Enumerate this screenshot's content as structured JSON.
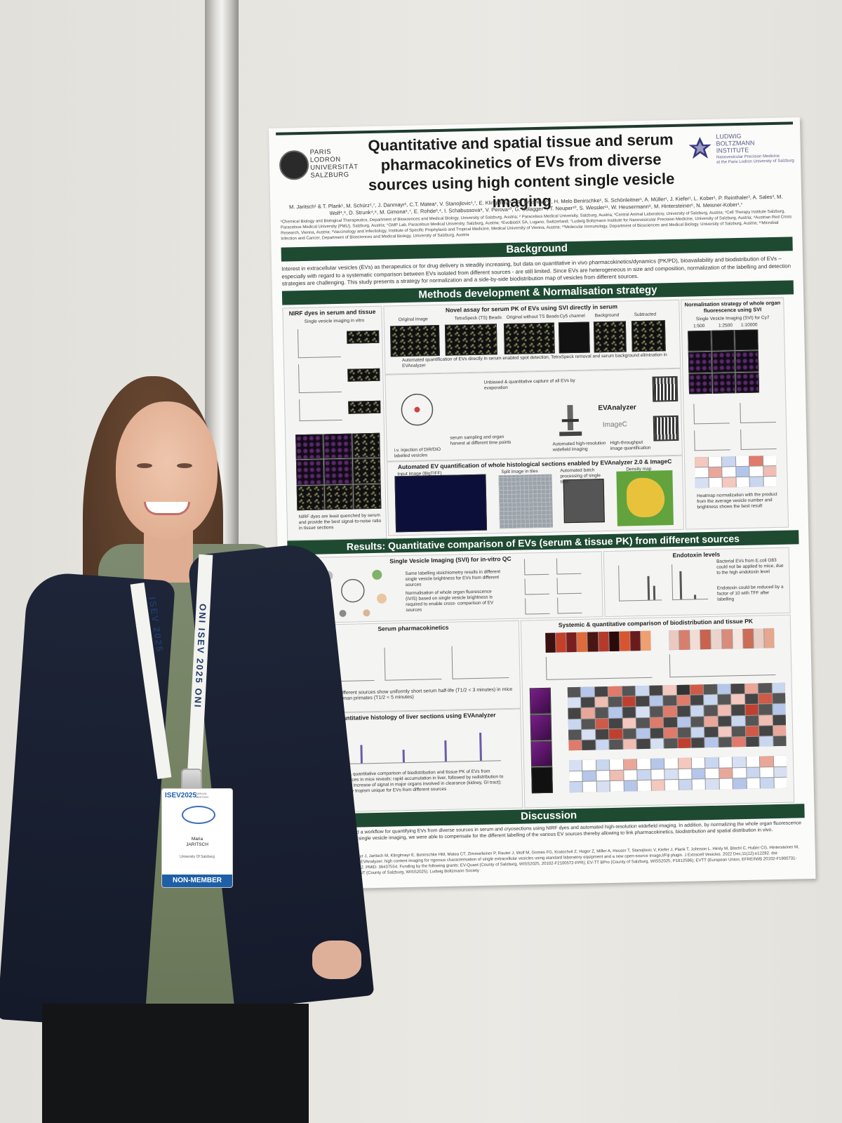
{
  "poster": {
    "title": "Quantitative and spatial tissue and serum pharmacokinetics of EVs from diverse sources using high content single vesicle imaging",
    "left_logo": "PARIS\nLODRON\nUNIVERSITÄT\nSALZBURG",
    "right_logo": "LUDWIG\nBOLTZMANN\nINSTITUTE",
    "right_logo_sub": "Nanovesicular Precision Medicine\nat the Paris Lodron University of Salzburg",
    "authors": "M. Jaritsch¹ & T. Plank¹, M. Schürz¹,⁷, J. Danmayr¹, C.T. Matea¹, V. Stanojlovic¹,⁷, E. Klinglmayr¹,⁷, P. Hrasnova¹,², H. Melo Benirschke¹, S. Schönleitner¹, A. Müller¹, J. Kiefer¹, L. Kober¹, P. Reinthaler³, A. Sales³, M. Wolf⁴,⁸, D. Strunk⁴,⁸, M. Gimona⁵,⁷, E. Rohde³,⁴, I. Schabussova⁹, V. Perova¹⁰, G. Üblagger¹⁰, T. Neuper¹⁰, S. Wessler¹¹, W. Heusermann⁶, M. Hintersteiner⁶, N. Meisner-Kober¹,⁷",
    "affiliations": "¹Chemical Biology and Biological Therapeutics, Department of Biosciences and Medical Biology, University of Salzburg, Austria; ² Paracelsus Medical University, Salzburg, Austria; ³Central Animal Laboratory, University of Salzburg, Austria; ⁴Cell Therapy Institute Salzburg, Paracelsus Medical University (PMU), Salzburg, Austria; ⁵GMP Lab, Paracelsus Medical University, Salzburg, Austria; ⁶EvoBiotiX SA, Lugano, Switzerland; ⁷Ludwig Boltzmann Institute for Nanovesicular Precision Medicine, University of Salzburg, Austria; ⁸Austrian Red Cross Research, Vienna, Austria; ⁹Vaccinology and Infectiology, Institute of Specific Prophylaxis and Tropical Medicine, Medical University of Vienna, Austria; ¹⁰Molecular Immunology, Department of Biosciences and Medical Biology, University of Salzburg, Austria; ¹¹Microbial Infection and Cancer, Department of Biosciences and Medical Biology, University of Salzburg, Austria",
    "background_header": "Background",
    "background_text": "Interest in extracellular vesicles (EVs) as therapeutics or for drug delivery is steadily increasing, but data on quantitative in vivo pharmacokinetics/dynamics (PK/PD), bioavailability and biodistribution of EVs – especially with regard to a systematic comparison between EVs isolated from different sources - are still limited. Since EVs are heterogeneous in size and composition, normalization of the labelling and detection strategies are challenging. This study presents a strategy for normalization and a side-by-side biodistribution map of vesicles from different sources.",
    "methods_header": "Methods development & Normalisation strategy",
    "nirf_title": "NIRF dyes in serum and tissue",
    "nirf_sub": "Single vesicle imaging in vitro",
    "nirf_note": "NIRF dyes are least quenched by serum and provide the best signal-to-noise ratio in tissue sections",
    "serum_assay_title": "Novel assay for serum PK of EVs using SVI directly in serum",
    "serum_assay_labels": [
      "Original image",
      "TetraSpeck (TS) Beads",
      "Original without TS Beads",
      "Cy5 channel",
      "Background",
      "Subtracted"
    ],
    "serum_assay_note": "Automated quantification of EVs directly in serum enabled spot detection, TetraSpeck removal and serum background elimination in EVAnalyzer",
    "workflow_labels": [
      "i.v. injection of DiR/DiO labelled vesicles",
      "serum sampling and organ harvest at different time points",
      "Unbiased & quantitative capture of all EVs by evaporation",
      "Automated high-resolution widefield imaging",
      "High-throughput image quantification"
    ],
    "evanalyzer_text": "EVAnalyzer",
    "imagec_text": "ImageC",
    "histology_title": "Automated EV quantification of whole histological sections enabled by EVAnalyzer 2.0 & ImageC",
    "histology_labels": [
      "Input image (BigTIFF)",
      "Split image in tiles",
      "Automated batch processing of single tiles",
      "Density map"
    ],
    "normalisation_title": "Normalisation strategy of whole organ fluorescence using SVI",
    "normalisation_sub": "Single Vesicle Imaging (SVI) for Cy7",
    "normalisation_ratios": [
      "1:500",
      "1:2500",
      "1:10000"
    ],
    "normalisation_note": "Heatmap normalization with the product from the average vesicle number and brightness shows the best result",
    "results_header": "Results: Quantitative comparison of EVs (serum & tissue PK) from different sources",
    "svi_title": "Single Vesicle Imaging (SVI) for in-vitro QC",
    "svi_bullets": [
      "Same labelling stoichiometry results in different single vesicle brightness for EVs from different sources",
      "Normalisation of whole organ fluorescence (IVIS) based on single vesicle brightness is required to enable cross- comparison of EV sources"
    ],
    "endotoxin_title": "Endotoxin levels",
    "endotoxin_bullets": [
      "Bacterial EVs from E.coli O83 could not be applied to mice, due to the high endotoxin level",
      "Endotoxin could be reduced by a factor of 10 with TFF after labelling"
    ],
    "serum_pk_title": "Serum pharmacokinetics",
    "serum_pk_note": "EVs from different sources show uniformly short serum half-life (T1/2 < 3 minutes) in mice and non-human primates (T1/2 < 5 minutes)",
    "liver_title": "Quantitative histology of liver sections using EVAnalyzer",
    "systemic_title": "Systemic & quantitative comparison of biodistribution and tissue PK",
    "systemic_note": "Systematic & quantitative comparison of biodistribution and tissue PK of EVs from different sources in mice reveals: rapid accumulation in liver, followed by redistribution to other organs; increase of signal in major organs involved in clearance (kidney, GI tract); specific tissue tropism unique for EVs from different sources",
    "discussion_header": "Discussion",
    "discussion_text": "We established a workflow for quantifying EVs from diverse sources in serum and cryosections using NIRF dyes and automated high-resolution widefield imaging. In addition, by normalizing the whole organ fluorescence data based on single vesicle imaging, we were able to compensate for the different labelling of the various EV sources thereby allowing to link pharmacokinetics, biodistribution and spatial distribution in vivo.",
    "references": "Schürz M, Danmayr J, Jaritsch M, Klinglmayr E, Benirschke HM, Matea CT, Zimmerleiner P, Rauter J, Wolf M, Gomes FG, Kratochvil Z, Heger Z, Miller A, Heuser T, Stanojlovic V, Kiefer J, Plank T, Johnson L, Himly M, Blochl C, Huber CG, Hintersteiner M, Meisner-Kober N. EVAnalyzer: high content imaging for rigorous characterisation of single extracellular vesicles using standard laboratory equipment and a new open-source ImageJ/Fiji plugin. J Extracell Vesicles. 2022 Dec;11(12):e12282. doi: 10.1002/jev2.12282. PMID: 36437554. Funding by the following grants: EV-Quant (County of Salzburg, WISS2025, 20102-F2100572-FPR); EV-TT BPro (County of Salzburg, WISS2025, P1812596); EVTT (European Union, EFRE/IWB 20102-F1900731-KZP); CONSONANT (County of Salzburg, WISS2025). Ludwig Boltzmann Society"
  },
  "badge": {
    "event": "ISEV2025",
    "event_sub": "ANNUAL\nMEETING",
    "name": "Maria\nJARITSCH",
    "university": "University Of Salzburg",
    "type": "NON-MEMBER"
  },
  "lanyard": {
    "left_text": "ISEV 2025",
    "right_text": "ONI ISEV 2025 ONI"
  },
  "colors": {
    "poster_header": "#1f4a32",
    "badge_blue": "#1f5fa8",
    "jacket": "#1a2133",
    "shirt": "#75825f"
  }
}
